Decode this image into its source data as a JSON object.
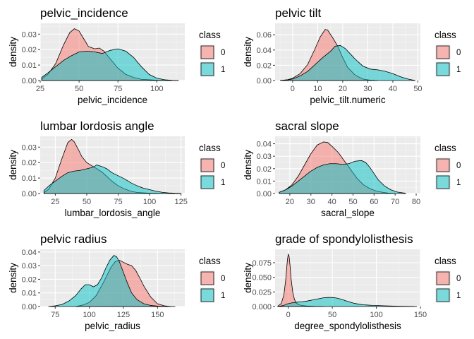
{
  "legend": {
    "title": "class",
    "entries": [
      {
        "label": "0",
        "color": "#f8766d"
      },
      {
        "label": "1",
        "color": "#00bfc4"
      }
    ],
    "placement": "right"
  },
  "chart_data": [
    {
      "type": "area",
      "title": "pelvic_incidence",
      "xlabel": "pelvic_incidence",
      "ylabel": "density",
      "xlim": [
        25,
        118
      ],
      "ylim": [
        0,
        0.037
      ],
      "xticks": [
        25,
        50,
        75,
        100
      ],
      "yticks": [
        0.0,
        0.01,
        0.02,
        0.03
      ],
      "ytick_labels": [
        "0.00",
        "0.01",
        "0.02",
        "0.03"
      ],
      "grid": true,
      "series": [
        {
          "name": "0",
          "x": [
            26,
            30,
            35,
            40,
            44,
            47,
            50,
            53,
            56,
            60,
            63,
            66,
            70,
            75,
            80,
            85,
            90,
            100,
            114
          ],
          "y": [
            0.001,
            0.004,
            0.011,
            0.023,
            0.031,
            0.0335,
            0.032,
            0.027,
            0.022,
            0.0205,
            0.021,
            0.019,
            0.014,
            0.008,
            0.004,
            0.002,
            0.0008,
            0.0002,
            0
          ]
        },
        {
          "name": "1",
          "x": [
            26,
            30,
            35,
            40,
            45,
            50,
            55,
            60,
            65,
            70,
            75,
            80,
            85,
            90,
            95,
            100,
            105,
            110,
            114
          ],
          "y": [
            0.002,
            0.005,
            0.009,
            0.013,
            0.016,
            0.0185,
            0.019,
            0.0185,
            0.0175,
            0.0195,
            0.0205,
            0.019,
            0.015,
            0.009,
            0.004,
            0.0015,
            0.0005,
            0.0001,
            0
          ]
        }
      ]
    },
    {
      "type": "area",
      "title": "pelvic tilt",
      "xlabel": "pelvic_tilt.numeric",
      "ylabel": "density",
      "xlim": [
        -7,
        51
      ],
      "ylim": [
        0,
        0.075
      ],
      "xticks": [
        0,
        10,
        20,
        30,
        40,
        50
      ],
      "yticks": [
        0.0,
        0.02,
        0.04,
        0.06
      ],
      "ytick_labels": [
        "0.00",
        "0.02",
        "0.04",
        "0.06"
      ],
      "grid": true,
      "series": [
        {
          "name": "0",
          "x": [
            -5,
            -2,
            0,
            3,
            6,
            9,
            11,
            13,
            14,
            16,
            18,
            20,
            22,
            25,
            28,
            31,
            34
          ],
          "y": [
            0,
            0.001,
            0.003,
            0.009,
            0.021,
            0.042,
            0.057,
            0.067,
            0.066,
            0.056,
            0.045,
            0.03,
            0.017,
            0.007,
            0.002,
            0.0005,
            0
          ]
        },
        {
          "name": "1",
          "x": [
            -5,
            -2,
            0,
            3,
            6,
            9,
            12,
            15,
            17,
            19,
            21,
            23,
            25,
            28,
            31,
            34,
            37,
            40,
            43,
            46,
            49
          ],
          "y": [
            0,
            0.001,
            0.002,
            0.006,
            0.012,
            0.021,
            0.03,
            0.038,
            0.045,
            0.046,
            0.042,
            0.035,
            0.028,
            0.019,
            0.015,
            0.014,
            0.012,
            0.009,
            0.005,
            0.002,
            0
          ]
        }
      ]
    },
    {
      "type": "area",
      "title": "lumbar lordosis angle",
      "xlabel": "lumbar_lordosis_angle",
      "ylabel": "density",
      "xlim": [
        13,
        128
      ],
      "ylim": [
        0,
        0.037
      ],
      "xticks": [
        25,
        50,
        75,
        100,
        125
      ],
      "yticks": [
        0.0,
        0.01,
        0.02,
        0.03
      ],
      "ytick_labels": [
        "0.00",
        "0.01",
        "0.02",
        "0.03"
      ],
      "grid": true,
      "series": [
        {
          "name": "0",
          "x": [
            16,
            20,
            25,
            30,
            35,
            38,
            40,
            43,
            46,
            50,
            54,
            58,
            62,
            66,
            70,
            75,
            80,
            85,
            90,
            100,
            115,
            125
          ],
          "y": [
            0.0005,
            0.003,
            0.01,
            0.022,
            0.033,
            0.035,
            0.0335,
            0.029,
            0.024,
            0.02,
            0.018,
            0.016,
            0.014,
            0.011,
            0.008,
            0.005,
            0.003,
            0.0015,
            0.0007,
            0.0002,
            0,
            0
          ]
        },
        {
          "name": "1",
          "x": [
            16,
            20,
            25,
            30,
            35,
            40,
            45,
            50,
            55,
            58,
            62,
            66,
            70,
            75,
            80,
            85,
            90,
            95,
            100,
            105,
            110,
            115,
            120,
            125
          ],
          "y": [
            0.002,
            0.005,
            0.008,
            0.011,
            0.0135,
            0.0145,
            0.015,
            0.016,
            0.017,
            0.0185,
            0.0175,
            0.016,
            0.0135,
            0.0115,
            0.0095,
            0.007,
            0.005,
            0.0035,
            0.0025,
            0.0015,
            0.0008,
            0.0004,
            0.0002,
            0.0001
          ]
        }
      ]
    },
    {
      "type": "area",
      "title": "sacral slope",
      "xlabel": "sacral_slope",
      "ylabel": "density",
      "xlim": [
        13,
        82
      ],
      "ylim": [
        0,
        0.046
      ],
      "xticks": [
        20,
        30,
        40,
        50,
        60,
        70,
        80
      ],
      "yticks": [
        0.0,
        0.01,
        0.02,
        0.03,
        0.04
      ],
      "ytick_labels": [
        "0.00",
        "0.01",
        "0.02",
        "0.03",
        "0.04"
      ],
      "grid": true,
      "series": [
        {
          "name": "0",
          "x": [
            15,
            18,
            21,
            24,
            27,
            30,
            33,
            36,
            38,
            40,
            43,
            46,
            49,
            52,
            55,
            58,
            61,
            64,
            67,
            70
          ],
          "y": [
            0.001,
            0.003,
            0.007,
            0.014,
            0.023,
            0.032,
            0.039,
            0.0415,
            0.041,
            0.038,
            0.033,
            0.026,
            0.019,
            0.012,
            0.007,
            0.004,
            0.002,
            0.001,
            0.0003,
            0
          ]
        },
        {
          "name": "1",
          "x": [
            15,
            18,
            21,
            24,
            27,
            30,
            33,
            36,
            39,
            42,
            45,
            48,
            51,
            54,
            56,
            58,
            60,
            62,
            65,
            68,
            71,
            75
          ],
          "y": [
            0.001,
            0.003,
            0.006,
            0.01,
            0.014,
            0.018,
            0.021,
            0.023,
            0.024,
            0.024,
            0.0235,
            0.024,
            0.026,
            0.0265,
            0.025,
            0.021,
            0.016,
            0.011,
            0.006,
            0.003,
            0.0012,
            0.0002
          ]
        }
      ]
    },
    {
      "type": "area",
      "title": "pelvic radius",
      "xlabel": "pelvic_radius",
      "ylabel": "density",
      "xlim": [
        64,
        170
      ],
      "ylim": [
        0,
        0.042
      ],
      "xticks": [
        75,
        100,
        125,
        150
      ],
      "yticks": [
        0.0,
        0.01,
        0.02,
        0.03,
        0.04
      ],
      "ytick_labels": [
        "0.00",
        "0.01",
        "0.02",
        "0.03",
        "0.04"
      ],
      "grid": true,
      "series": [
        {
          "name": "0",
          "x": [
            90,
            95,
            100,
            105,
            110,
            113,
            116,
            119,
            122,
            125,
            128,
            131,
            134,
            137,
            140,
            145,
            150,
            155,
            160
          ],
          "y": [
            0,
            0.001,
            0.003,
            0.008,
            0.017,
            0.023,
            0.029,
            0.033,
            0.034,
            0.0325,
            0.031,
            0.03,
            0.0265,
            0.021,
            0.015,
            0.007,
            0.002,
            0.0005,
            0
          ]
        },
        {
          "name": "1",
          "x": [
            70,
            75,
            80,
            85,
            90,
            94,
            97,
            100,
            103,
            106,
            109,
            112,
            115,
            118,
            120,
            122,
            125,
            128,
            131,
            135,
            140,
            145,
            150,
            155,
            163
          ],
          "y": [
            0,
            0.0005,
            0.0015,
            0.004,
            0.008,
            0.013,
            0.016,
            0.016,
            0.0145,
            0.016,
            0.021,
            0.028,
            0.034,
            0.0375,
            0.0365,
            0.033,
            0.025,
            0.017,
            0.01,
            0.005,
            0.002,
            0.0008,
            0.0003,
            0.0001,
            0
          ]
        }
      ]
    },
    {
      "type": "area",
      "title": "grade of spondylolisthesis",
      "xlabel": "degree_spondylolisthesis",
      "ylabel": "density",
      "xlim": [
        -15,
        150
      ],
      "ylim": [
        0,
        0.098
      ],
      "xticks": [
        0,
        50,
        100,
        150
      ],
      "yticks": [
        0.0,
        0.025,
        0.05,
        0.075
      ],
      "ytick_labels": [
        "0.000",
        "0.025",
        "0.050",
        "0.075"
      ],
      "grid": true,
      "series": [
        {
          "name": "0",
          "x": [
            -12,
            -8,
            -5,
            -3,
            -1,
            0,
            1,
            2,
            3,
            5,
            7,
            9,
            12,
            15,
            20,
            30,
            40
          ],
          "y": [
            0.0005,
            0.005,
            0.02,
            0.045,
            0.08,
            0.09,
            0.085,
            0.07,
            0.05,
            0.025,
            0.012,
            0.006,
            0.003,
            0.002,
            0.001,
            0.0003,
            0
          ]
        },
        {
          "name": "1",
          "x": [
            -12,
            -8,
            -5,
            -2,
            0,
            5,
            10,
            15,
            20,
            25,
            30,
            35,
            40,
            45,
            50,
            55,
            60,
            65,
            70,
            75,
            80,
            85,
            90,
            95,
            100,
            110,
            120,
            130,
            140,
            146
          ],
          "y": [
            0,
            0.001,
            0.002,
            0.004,
            0.005,
            0.0065,
            0.0075,
            0.008,
            0.009,
            0.0105,
            0.012,
            0.0135,
            0.015,
            0.0155,
            0.0155,
            0.0145,
            0.0125,
            0.01,
            0.0075,
            0.0055,
            0.004,
            0.003,
            0.0025,
            0.002,
            0.0018,
            0.0012,
            0.0008,
            0.0005,
            0.0002,
            0
          ]
        }
      ]
    }
  ]
}
